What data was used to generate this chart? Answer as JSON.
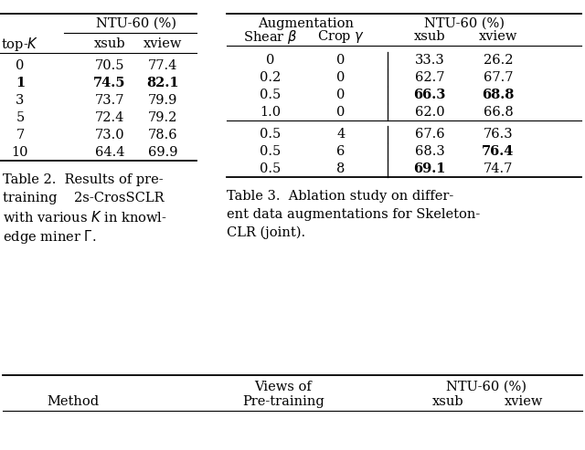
{
  "table2": {
    "rows": [
      [
        "0",
        "70.5",
        "77.4",
        false
      ],
      [
        "1",
        "74.5",
        "82.1",
        true
      ],
      [
        "3",
        "73.7",
        "79.9",
        false
      ],
      [
        "5",
        "72.4",
        "79.2",
        false
      ],
      [
        "7",
        "73.0",
        "78.6",
        false
      ],
      [
        "10",
        "64.4",
        "69.9",
        false
      ]
    ],
    "bold_row": 1,
    "caption_lines": [
      "Table 2.  Results of pre-",
      "training    2s-CrosSCLR",
      "with various $K$ in knowl-",
      "edge miner $\\Gamma$."
    ]
  },
  "table3": {
    "groups": [
      {
        "rows": [
          [
            "0",
            "0",
            "33.3",
            "26.2",
            false,
            false
          ],
          [
            "0.2",
            "0",
            "62.7",
            "67.7",
            false,
            false
          ],
          [
            "0.5",
            "0",
            "66.3",
            "68.8",
            true,
            true
          ],
          [
            "1.0",
            "0",
            "62.0",
            "66.8",
            false,
            false
          ]
        ]
      },
      {
        "rows": [
          [
            "0.5",
            "4",
            "67.6",
            "76.3",
            false,
            false
          ],
          [
            "0.5",
            "6",
            "68.3",
            "76.4",
            false,
            true
          ],
          [
            "0.5",
            "8",
            "69.1",
            "74.7",
            true,
            false
          ]
        ]
      }
    ],
    "caption_lines": [
      "Table 3.  Ablation study on differ-",
      "ent data augmentations for Skeleton-",
      "CLR (joint)."
    ]
  },
  "bg_color": "#ffffff",
  "text_color": "#000000",
  "font_size": 10.5
}
